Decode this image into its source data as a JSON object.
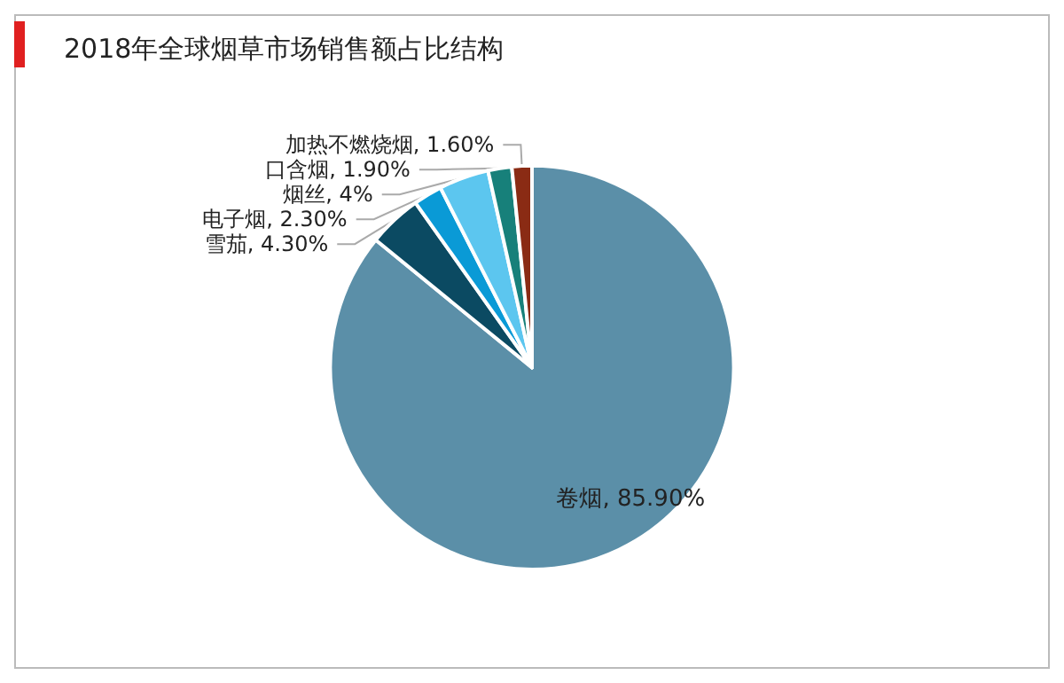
{
  "chart_data": {
    "type": "pie",
    "title": "2018年全球烟草市场销售额占比结构",
    "categories": [
      "卷烟",
      "雪茄",
      "电子烟",
      "烟丝",
      "口含烟",
      "加热不燃烧烟"
    ],
    "values": [
      85.9,
      4.3,
      2.3,
      4,
      1.9,
      1.6
    ],
    "value_labels": [
      "85.90%",
      "4.30%",
      "2.30%",
      "4%",
      "1.90%",
      "1.60%"
    ],
    "colors": [
      "#5b8fa8",
      "#0b4a62",
      "#0a9ad6",
      "#5cc6ef",
      "#17807a",
      "#8a2b14"
    ]
  }
}
